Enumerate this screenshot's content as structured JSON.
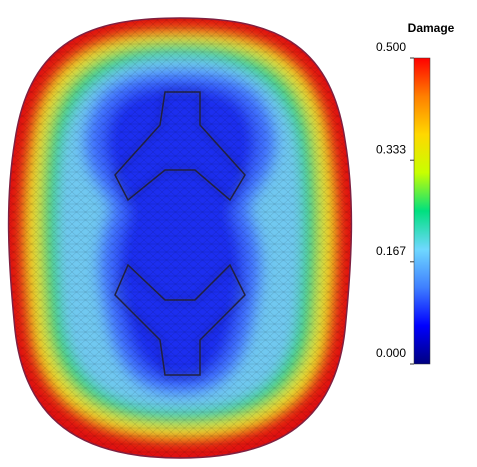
{
  "chart_data": {
    "type": "contour",
    "colorbar_label": "Damage",
    "clim": [
      0,
      0.5
    ],
    "cticks": [
      {
        "value": 0,
        "label": "0.000"
      },
      0.167,
      0.333,
      {
        "value": 0.5,
        "label": "0.500"
      }
    ],
    "colors": [
      "#00007f",
      "#0000ff",
      "#3f7fff",
      "#6fd8ff",
      "#00e07f",
      "#c8ff00",
      "#ffd800",
      "#ff7f00",
      "#ff0000"
    ]
  }
}
